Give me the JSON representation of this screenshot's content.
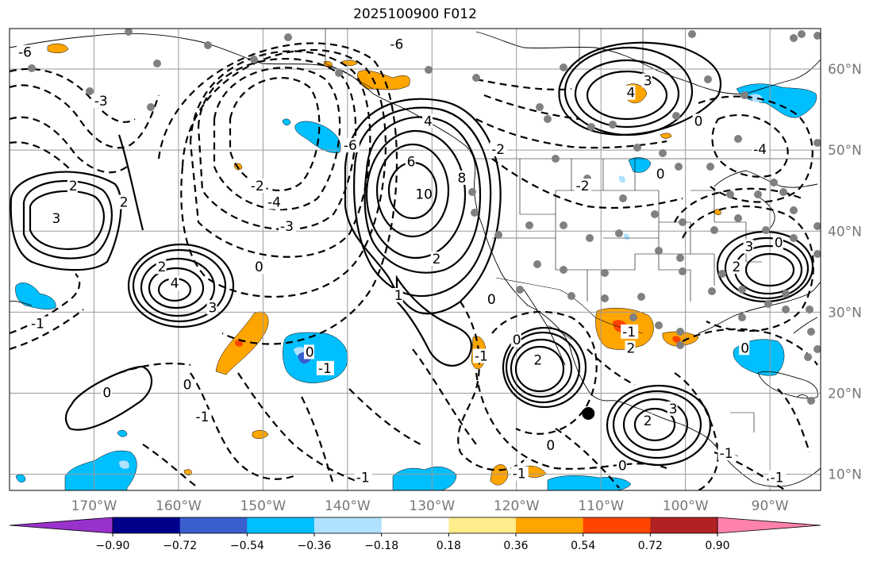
{
  "title": "2025100900 F012",
  "map": {
    "projection": "PlateCarree",
    "lon_range": [
      -180,
      -84
    ],
    "lat_range": [
      8,
      65
    ],
    "gridlines": true,
    "lon_ticks": [
      {
        "value": -170,
        "label": "170°W"
      },
      {
        "value": -160,
        "label": "160°W"
      },
      {
        "value": -150,
        "label": "150°W"
      },
      {
        "value": -140,
        "label": "140°W"
      },
      {
        "value": -130,
        "label": "130°W"
      },
      {
        "value": -120,
        "label": "120°W"
      },
      {
        "value": -110,
        "label": "110°W"
      },
      {
        "value": -100,
        "label": "100°W"
      },
      {
        "value": -90,
        "label": "90°W"
      }
    ],
    "lat_ticks": [
      {
        "value": 60,
        "label": "60°N"
      },
      {
        "value": 50,
        "label": "50°N"
      },
      {
        "value": 40,
        "label": "40°N"
      },
      {
        "value": 30,
        "label": "30°N"
      },
      {
        "value": 20,
        "label": "20°N"
      },
      {
        "value": 10,
        "label": "10°N"
      }
    ],
    "marked_point": {
      "lon": -111.5,
      "lat": 17.5,
      "color": "#000000"
    },
    "contour_labels": [
      {
        "text": "10",
        "lon": -131.5,
        "lat": 44.5
      },
      {
        "text": "8",
        "lon": -126.5,
        "lat": 46.5
      },
      {
        "text": "6",
        "lon": -132.5,
        "lat": 48.5
      },
      {
        "text": "4",
        "lon": -130.5,
        "lat": 53.5
      },
      {
        "text": "2",
        "lon": -129.5,
        "lat": 36.5
      },
      {
        "text": "1",
        "lon": -134.0,
        "lat": 32.0
      },
      {
        "text": "3",
        "lon": -156.0,
        "lat": 30.5
      },
      {
        "text": "4",
        "lon": -160.5,
        "lat": 33.5
      },
      {
        "text": "2",
        "lon": -162.0,
        "lat": 35.5
      },
      {
        "text": "3",
        "lon": -174.5,
        "lat": 41.5
      },
      {
        "text": "2",
        "lon": -172.5,
        "lat": 45.5
      },
      {
        "text": "2",
        "lon": -166.5,
        "lat": 43.5
      },
      {
        "text": "0",
        "lon": -150.5,
        "lat": 35.5
      },
      {
        "text": "0",
        "lon": -168.5,
        "lat": 20.0
      },
      {
        "text": "0",
        "lon": -159.0,
        "lat": 21.0
      },
      {
        "text": "-1",
        "lon": -157.5,
        "lat": 17.0
      },
      {
        "text": "-1",
        "lon": -143.0,
        "lat": 23.0
      },
      {
        "text": "0",
        "lon": -144.5,
        "lat": 25.0
      },
      {
        "text": "-2",
        "lon": -151.0,
        "lat": 45.5
      },
      {
        "text": "-4",
        "lon": -149.0,
        "lat": 43.5
      },
      {
        "text": "-3",
        "lon": -147.5,
        "lat": 40.5
      },
      {
        "text": "-3",
        "lon": -169.5,
        "lat": 56.0
      },
      {
        "text": "-6",
        "lon": -178.5,
        "lat": 62.0
      },
      {
        "text": "-6",
        "lon": -134.5,
        "lat": 63.0
      },
      {
        "text": "-6",
        "lon": -140.0,
        "lat": 50.5
      },
      {
        "text": "-1",
        "lon": -177.0,
        "lat": 28.5
      },
      {
        "text": "-1",
        "lon": -120.0,
        "lat": 10.0
      },
      {
        "text": "-1",
        "lon": -138.5,
        "lat": 9.5
      },
      {
        "text": "0",
        "lon": -120.0,
        "lat": 26.5
      },
      {
        "text": "0",
        "lon": -123.0,
        "lat": 31.5
      },
      {
        "text": "0",
        "lon": -116.0,
        "lat": 13.5
      },
      {
        "text": "-1",
        "lon": -124.5,
        "lat": 24.5
      },
      {
        "text": "2",
        "lon": -106.5,
        "lat": 25.5
      },
      {
        "text": "-1",
        "lon": -107.0,
        "lat": 27.5
      },
      {
        "text": "-2",
        "lon": -112.5,
        "lat": 45.5
      },
      {
        "text": "-2",
        "lon": -122.5,
        "lat": 50.0
      },
      {
        "text": "2",
        "lon": -117.5,
        "lat": 24.0
      },
      {
        "text": "3",
        "lon": -101.5,
        "lat": 18.0
      },
      {
        "text": "2",
        "lon": -104.5,
        "lat": 16.5
      },
      {
        "text": "0",
        "lon": -107.5,
        "lat": 11.0
      },
      {
        "text": "-1",
        "lon": -95.5,
        "lat": 12.5
      },
      {
        "text": "4",
        "lon": -106.5,
        "lat": 57.0
      },
      {
        "text": "3",
        "lon": -104.5,
        "lat": 58.5
      },
      {
        "text": "0",
        "lon": -98.5,
        "lat": 53.5
      },
      {
        "text": "0",
        "lon": -103.0,
        "lat": 47.0
      },
      {
        "text": "-4",
        "lon": -91.5,
        "lat": 50.0
      },
      {
        "text": "3",
        "lon": -92.5,
        "lat": 38.0
      },
      {
        "text": "2",
        "lon": -94.0,
        "lat": 35.5
      },
      {
        "text": "0",
        "lon": -89.0,
        "lat": 38.5
      },
      {
        "text": "0",
        "lon": -93.0,
        "lat": 25.5
      },
      {
        "text": "-1",
        "lon": -89.5,
        "lat": 9.5
      }
    ]
  },
  "colorbar": {
    "extend": "both",
    "colors": [
      "#9932cc",
      "#00008b",
      "#3a5fcd",
      "#00bfff",
      "#b0e2ff",
      "#ffffff",
      "#ffec8b",
      "#ffa500",
      "#ff4500",
      "#b22222",
      "#ff82ab"
    ],
    "tick_labels": [
      "−0.90",
      "−0.72",
      "−0.54",
      "−0.36",
      "−0.18",
      "0.18",
      "0.36",
      "0.54",
      "0.72",
      "0.90"
    ]
  }
}
